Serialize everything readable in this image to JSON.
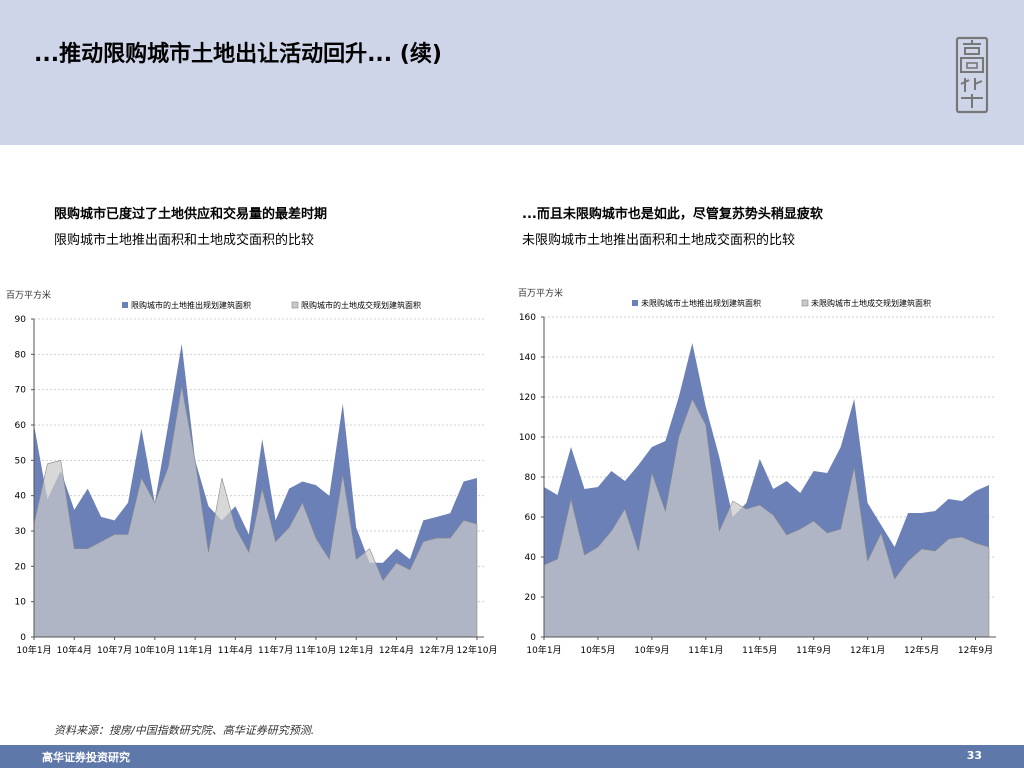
{
  "page": {
    "title": "...推动限购城市土地出让活动回升... (续)",
    "logo_text": "高华",
    "source": "资料来源：搜房/中国指数研究院、高华证券研究预测.",
    "footer_left": "高华证券投资研究",
    "page_number": "33"
  },
  "left_panel": {
    "headline": "限购城市已度过了土地供应和交易量的最差时期",
    "subtitle": "限购城市土地推出面积和土地成交面积的比较"
  },
  "right_panel": {
    "headline": "...而且未限购城市也是如此，尽管复苏势头稍显疲软",
    "subtitle": "未限购城市土地推出面积和土地成交面积的比较"
  },
  "colors": {
    "supply": "#6b80b7",
    "traded": "#c9c9c9",
    "header_bg": "#cfd5e8",
    "footer_bg": "#5f78aa"
  },
  "chart_data": [
    {
      "type": "area",
      "unit_label": "百万平方米",
      "ylim": [
        0,
        90
      ],
      "yticks": [
        0,
        10,
        20,
        30,
        40,
        50,
        60,
        70,
        80,
        90
      ],
      "x": [
        "10年1月",
        "10年2月",
        "10年3月",
        "10年4月",
        "10年5月",
        "10年6月",
        "10年7月",
        "10年8月",
        "10年9月",
        "10年10月",
        "10年11月",
        "10年12月",
        "11年1月",
        "11年2月",
        "11年3月",
        "11年4月",
        "11年5月",
        "11年6月",
        "11年7月",
        "11年8月",
        "11年9月",
        "11年10月",
        "11年11月",
        "11年12月",
        "12年1月",
        "12年2月",
        "12年3月",
        "12年4月",
        "12年5月",
        "12年6月",
        "12年7月",
        "12年8月",
        "12年9月",
        "12年10月"
      ],
      "xtick_labels": [
        "10年1月",
        "10年4月",
        "10年7月",
        "10年10月",
        "11年1月",
        "11年4月",
        "11年7月",
        "11年10月",
        "12年1月",
        "12年4月",
        "12年7月",
        "12年10月"
      ],
      "series": [
        {
          "name": "限购城市的土地推出规划建筑面积",
          "color": "#6b80b7",
          "values": [
            60,
            39,
            47,
            36,
            42,
            34,
            33,
            38,
            59,
            38,
            60,
            83,
            50,
            37,
            33,
            37,
            29,
            56,
            33,
            42,
            44,
            43,
            40,
            66,
            31,
            21,
            21,
            25,
            22,
            33,
            34,
            35,
            44,
            45
          ]
        },
        {
          "name": "限购城市的土地成交规划建筑面积",
          "color": "#c9c9c9",
          "values": [
            32,
            49,
            50,
            25,
            25,
            27,
            29,
            29,
            45,
            38,
            48,
            71,
            50,
            24,
            45,
            31,
            24,
            42,
            27,
            31,
            38,
            28,
            22,
            46,
            22,
            25,
            16,
            21,
            19,
            27,
            28,
            28,
            33,
            32
          ]
        }
      ],
      "grid": true,
      "legend": "top"
    },
    {
      "type": "area",
      "unit_label": "百万平方米",
      "ylim": [
        0,
        160
      ],
      "yticks": [
        0,
        20,
        40,
        60,
        80,
        100,
        120,
        140,
        160
      ],
      "x": [
        "10年1月",
        "10年2月",
        "10年3月",
        "10年4月",
        "10年5月",
        "10年6月",
        "10年7月",
        "10年8月",
        "10年9月",
        "10年10月",
        "10年11月",
        "10年12月",
        "11年1月",
        "11年2月",
        "11年3月",
        "11年4月",
        "11年5月",
        "11年6月",
        "11年7月",
        "11年8月",
        "11年9月",
        "11年10月",
        "11年11月",
        "11年12月",
        "12年1月",
        "12年2月",
        "12年3月",
        "12年4月",
        "12年5月",
        "12年6月",
        "12年7月",
        "12年8月",
        "12年9月",
        "12年10月"
      ],
      "xtick_labels": [
        "10年1月",
        "10年5月",
        "10年9月",
        "11年1月",
        "11年5月",
        "11年9月",
        "12年1月",
        "12年5月",
        "12年9月"
      ],
      "series": [
        {
          "name": "未限购城市土地推出规划建筑面积",
          "color": "#6b80b7",
          "values": [
            75,
            71,
            95,
            74,
            75,
            83,
            78,
            86,
            95,
            98,
            120,
            147,
            115,
            90,
            60,
            67,
            89,
            74,
            78,
            72,
            83,
            82,
            95,
            119,
            67,
            56,
            45,
            62,
            62,
            63,
            69,
            68,
            73,
            76
          ]
        },
        {
          "name": "未限购城市土地成交规划建筑面积",
          "color": "#c9c9c9",
          "values": [
            36,
            39,
            69,
            41,
            45,
            53,
            64,
            43,
            82,
            63,
            100,
            119,
            106,
            53,
            68,
            64,
            66,
            61,
            51,
            54,
            58,
            52,
            54,
            85,
            38,
            52,
            29,
            38,
            44,
            43,
            49,
            50,
            47,
            45
          ]
        }
      ],
      "grid": true,
      "legend": "top"
    }
  ]
}
